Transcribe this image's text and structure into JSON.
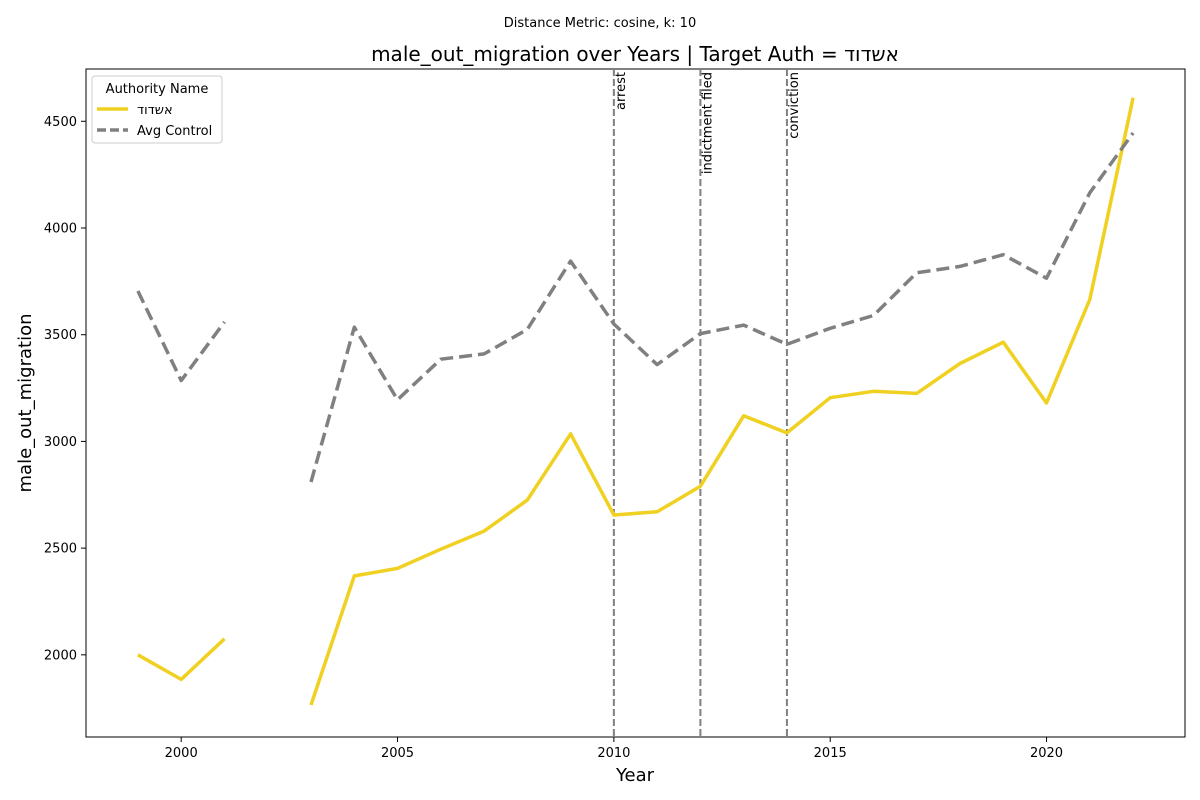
{
  "suptitle": "Distance Metric: cosine, k: 10",
  "chart_data": {
    "type": "line",
    "title": "male_out_migration over Years | Target Auth = אשדוד",
    "xlabel": "Year",
    "ylabel": "male_out_migration",
    "xlim": [
      1997.8,
      2023.2
    ],
    "ylim": [
      1615,
      4745
    ],
    "xticks": [
      2000,
      2005,
      2010,
      2015,
      2020
    ],
    "yticks": [
      2000,
      2500,
      3000,
      3500,
      4000,
      4500
    ],
    "grid": false,
    "legend": {
      "title": "Authority Name",
      "placement": "upper-left"
    },
    "x": [
      1999,
      2000,
      2001,
      2002,
      2003,
      2004,
      2005,
      2006,
      2007,
      2008,
      2009,
      2010,
      2011,
      2012,
      2013,
      2014,
      2015,
      2016,
      2017,
      2018,
      2019,
      2020,
      2021,
      2022
    ],
    "series": [
      {
        "name": "אשדוד",
        "color": "#f0d020",
        "style": "solid",
        "values": [
          2000,
          1885,
          2075,
          null,
          1765,
          2370,
          2405,
          2495,
          2580,
          2725,
          3035,
          2655,
          2670,
          2790,
          3120,
          3040,
          3205,
          3235,
          3225,
          3365,
          3465,
          3180,
          3665,
          4610
        ]
      },
      {
        "name": "Avg Control",
        "color": "#808080",
        "style": "dashed",
        "values": [
          3705,
          3285,
          3560,
          null,
          2810,
          3535,
          3195,
          3385,
          3410,
          3525,
          3845,
          3550,
          3360,
          3505,
          3545,
          3455,
          3530,
          3590,
          3790,
          3820,
          3875,
          3765,
          4165,
          4445
        ]
      }
    ],
    "events": [
      {
        "x": 2010,
        "label": "arrest"
      },
      {
        "x": 2012,
        "label": "indictment filed"
      },
      {
        "x": 2014,
        "label": "conviction"
      }
    ]
  }
}
